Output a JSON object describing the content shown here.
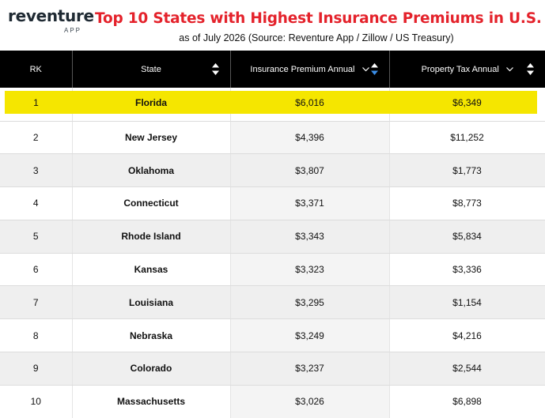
{
  "brand": {
    "name": "reventure",
    "sub": "APP"
  },
  "title": "Top 10 States with Highest Insurance Premiums in U.S.",
  "subtitle": "as of July 2026 (Source: Reventure App / Zillow / US Treasury)",
  "colors": {
    "title": "#e4222b",
    "header_bg": "#000000",
    "highlight": "#f5e600"
  },
  "chart_data": {
    "type": "table",
    "columns": [
      "RK",
      "State",
      "Insurance Premium Annual",
      "Property Tax Annual"
    ],
    "rows": [
      {
        "rank": "1",
        "state": "Florida",
        "insurance": "$6,016",
        "tax": "$6,349"
      },
      {
        "rank": "2",
        "state": "New Jersey",
        "insurance": "$4,396",
        "tax": "$11,252"
      },
      {
        "rank": "3",
        "state": "Oklahoma",
        "insurance": "$3,807",
        "tax": "$1,773"
      },
      {
        "rank": "4",
        "state": "Connecticut",
        "insurance": "$3,371",
        "tax": "$8,773"
      },
      {
        "rank": "5",
        "state": "Rhode Island",
        "insurance": "$3,343",
        "tax": "$5,834"
      },
      {
        "rank": "6",
        "state": "Kansas",
        "insurance": "$3,323",
        "tax": "$3,336"
      },
      {
        "rank": "7",
        "state": "Louisiana",
        "insurance": "$3,295",
        "tax": "$1,154"
      },
      {
        "rank": "8",
        "state": "Nebraska",
        "insurance": "$3,249",
        "tax": "$4,216"
      },
      {
        "rank": "9",
        "state": "Colorado",
        "insurance": "$3,237",
        "tax": "$2,544"
      },
      {
        "rank": "10",
        "state": "Massachusetts",
        "insurance": "$3,026",
        "tax": "$6,898"
      }
    ],
    "highlighted_rank": "1",
    "sorted_by": "Insurance Premium Annual"
  }
}
